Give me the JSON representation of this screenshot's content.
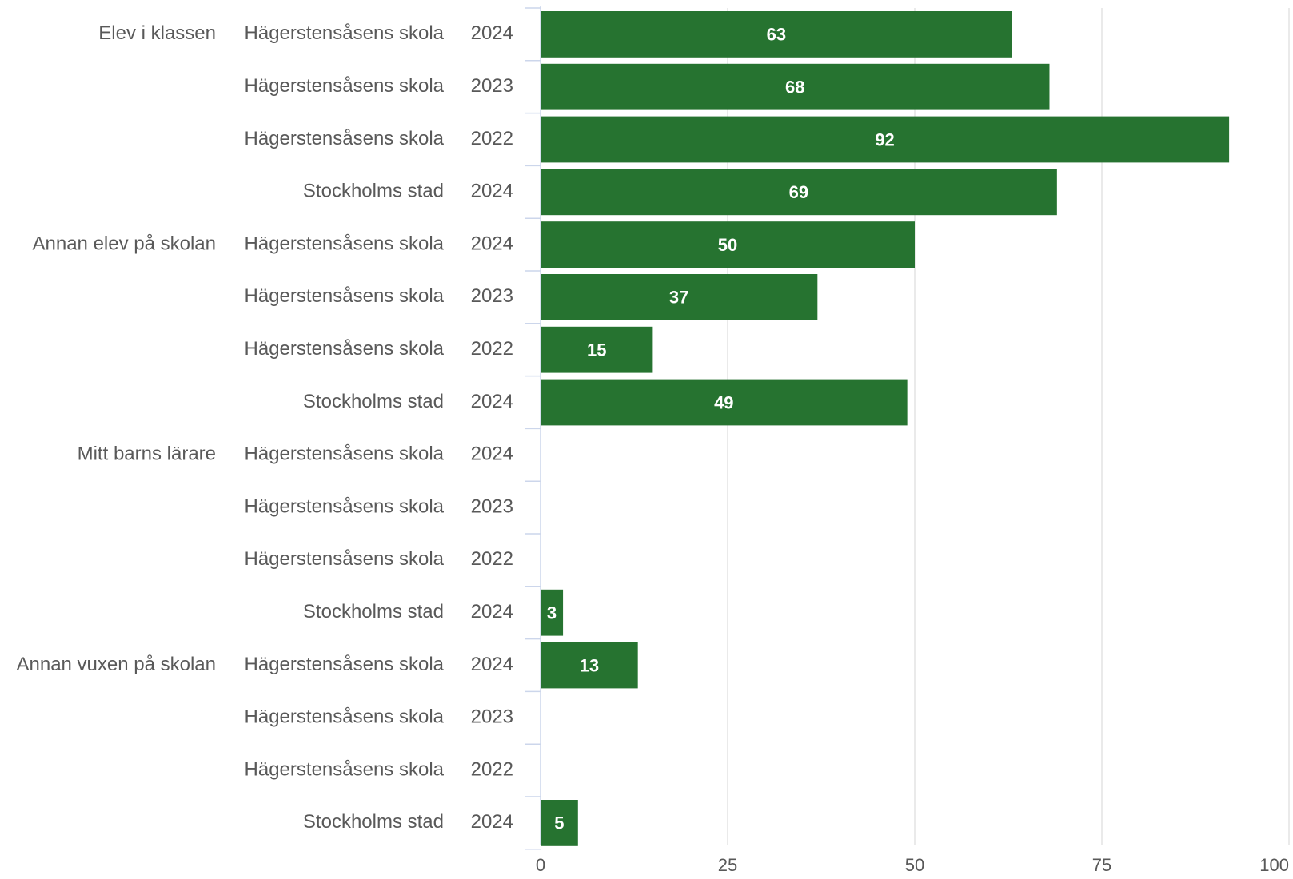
{
  "chart_data": {
    "type": "bar",
    "orientation": "horizontal",
    "bar_color": "#267330",
    "grid": true,
    "xlim": [
      0,
      100
    ],
    "xticks": [
      "0",
      "25",
      "50",
      "75",
      "100"
    ],
    "rows": [
      {
        "group": "Elev i klassen",
        "entity": "Hägerstensåsens skola",
        "year": "2024",
        "value": 63,
        "label": "63"
      },
      {
        "group": "",
        "entity": "Hägerstensåsens skola",
        "year": "2023",
        "value": 68,
        "label": "68"
      },
      {
        "group": "",
        "entity": "Hägerstensåsens skola",
        "year": "2022",
        "value": 92,
        "label": "92"
      },
      {
        "group": "",
        "entity": "Stockholms stad",
        "year": "2024",
        "value": 69,
        "label": "69"
      },
      {
        "group": "Annan elev på skolan",
        "entity": "Hägerstensåsens skola",
        "year": "2024",
        "value": 50,
        "label": "50"
      },
      {
        "group": "",
        "entity": "Hägerstensåsens skola",
        "year": "2023",
        "value": 37,
        "label": "37"
      },
      {
        "group": "",
        "entity": "Hägerstensåsens skola",
        "year": "2022",
        "value": 15,
        "label": "15"
      },
      {
        "group": "",
        "entity": "Stockholms stad",
        "year": "2024",
        "value": 49,
        "label": "49"
      },
      {
        "group": "Mitt barns lärare",
        "entity": "Hägerstensåsens skola",
        "year": "2024",
        "value": null,
        "label": ""
      },
      {
        "group": "",
        "entity": "Hägerstensåsens skola",
        "year": "2023",
        "value": null,
        "label": ""
      },
      {
        "group": "",
        "entity": "Hägerstensåsens skola",
        "year": "2022",
        "value": null,
        "label": ""
      },
      {
        "group": "",
        "entity": "Stockholms stad",
        "year": "2024",
        "value": 3,
        "label": "3"
      },
      {
        "group": "Annan vuxen på skolan",
        "entity": "Hägerstensåsens skola",
        "year": "2024",
        "value": 13,
        "label": "13"
      },
      {
        "group": "",
        "entity": "Hägerstensåsens skola",
        "year": "2023",
        "value": null,
        "label": ""
      },
      {
        "group": "",
        "entity": "Hägerstensåsens skola",
        "year": "2022",
        "value": null,
        "label": ""
      },
      {
        "group": "",
        "entity": "Stockholms stad",
        "year": "2024",
        "value": 5,
        "label": "5"
      }
    ]
  }
}
